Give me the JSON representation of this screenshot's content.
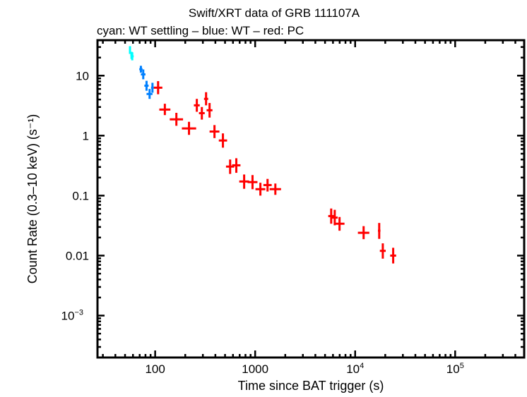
{
  "chart_data": {
    "type": "scatter",
    "title": "Swift/XRT data of GRB 111107A",
    "subtitle": "cyan: WT settling – blue: WT – red: PC",
    "xlabel": "Time since BAT trigger (s)",
    "ylabel": "Count Rate (0.3–10 keV) (s⁻¹)",
    "xscale": "log",
    "yscale": "log",
    "xlim": [
      26.5,
      490000
    ],
    "ylim": [
      0.0002,
      39
    ],
    "grid": false,
    "x_ticks": [
      {
        "value": 100,
        "base": "100",
        "exp": ""
      },
      {
        "value": 1000,
        "base": "1000",
        "exp": ""
      },
      {
        "value": 10000,
        "base": "10",
        "exp": "4"
      },
      {
        "value": 100000,
        "base": "10",
        "exp": "5"
      }
    ],
    "y_ticks": [
      {
        "value": 10,
        "base": "10",
        "exp": ""
      },
      {
        "value": 1,
        "base": "1",
        "exp": ""
      },
      {
        "value": 0.1,
        "base": "0.1",
        "exp": ""
      },
      {
        "value": 0.01,
        "base": "0.01",
        "exp": ""
      },
      {
        "value": 0.001,
        "base": "10",
        "exp": "−3"
      }
    ],
    "series": [
      {
        "mode": "WT settling",
        "color": "#00ffff",
        "points": [
          {
            "x": 56,
            "y": 27,
            "xlo": 55,
            "xhi": 57,
            "ylo": 23,
            "yhi": 31
          },
          {
            "x": 58,
            "y": 22,
            "xlo": 56.5,
            "xhi": 59.5,
            "ylo": 19,
            "yhi": 25
          },
          {
            "x": 59,
            "y": 21,
            "xlo": 57,
            "xhi": 61,
            "ylo": 18,
            "yhi": 24.5
          }
        ]
      },
      {
        "mode": "WT",
        "color": "#0080ff",
        "points": [
          {
            "x": 72,
            "y": 12.8,
            "xlo": 69.4,
            "xhi": 74.7,
            "ylo": 11.2,
            "yhi": 14.6
          },
          {
            "x": 76,
            "y": 10.5,
            "xlo": 72,
            "xhi": 80,
            "ylo": 8.7,
            "yhi": 12.7
          },
          {
            "x": 82,
            "y": 6.8,
            "xlo": 78,
            "xhi": 86,
            "ylo": 5.6,
            "yhi": 8.2
          },
          {
            "x": 88,
            "y": 4.95,
            "xlo": 82,
            "xhi": 94,
            "ylo": 4.1,
            "yhi": 6.0
          },
          {
            "x": 94,
            "y": 6.3,
            "xlo": 91,
            "xhi": 97,
            "ylo": 5.2,
            "yhi": 7.6
          }
        ]
      },
      {
        "mode": "PC",
        "color": "#ff0000",
        "points": [
          {
            "x": 107,
            "y": 6.3,
            "xlo": 97,
            "xhi": 118,
            "ylo": 4.9,
            "yhi": 8.1
          },
          {
            "x": 125,
            "y": 2.72,
            "xlo": 110,
            "xhi": 142,
            "ylo": 2.2,
            "yhi": 3.4
          },
          {
            "x": 163,
            "y": 1.87,
            "xlo": 140,
            "xhi": 190,
            "ylo": 1.46,
            "yhi": 2.4
          },
          {
            "x": 218,
            "y": 1.32,
            "xlo": 185,
            "xhi": 257,
            "ylo": 1.03,
            "yhi": 1.7
          },
          {
            "x": 261,
            "y": 3.2,
            "xlo": 244,
            "xhi": 279,
            "ylo": 2.5,
            "yhi": 4.1
          },
          {
            "x": 293,
            "y": 2.37,
            "xlo": 274,
            "xhi": 313,
            "ylo": 1.85,
            "yhi": 3.0
          },
          {
            "x": 323,
            "y": 4.1,
            "xlo": 308,
            "xhi": 339,
            "ylo": 3.2,
            "yhi": 5.3
          },
          {
            "x": 350,
            "y": 2.65,
            "xlo": 327,
            "xhi": 374,
            "ylo": 2.0,
            "yhi": 3.5
          },
          {
            "x": 392,
            "y": 1.17,
            "xlo": 350,
            "xhi": 439,
            "ylo": 0.91,
            "yhi": 1.5
          },
          {
            "x": 476,
            "y": 0.83,
            "xlo": 433,
            "xhi": 524,
            "ylo": 0.63,
            "yhi": 1.09
          },
          {
            "x": 562,
            "y": 0.305,
            "xlo": 511,
            "xhi": 618,
            "ylo": 0.23,
            "yhi": 0.4
          },
          {
            "x": 648,
            "y": 0.32,
            "xlo": 589,
            "xhi": 713,
            "ylo": 0.24,
            "yhi": 0.42
          },
          {
            "x": 776,
            "y": 0.172,
            "xlo": 693,
            "xhi": 869,
            "ylo": 0.13,
            "yhi": 0.225
          },
          {
            "x": 941,
            "y": 0.168,
            "xlo": 840,
            "xhi": 1054,
            "ylo": 0.128,
            "yhi": 0.22
          },
          {
            "x": 1128,
            "y": 0.128,
            "xlo": 1007,
            "xhi": 1263,
            "ylo": 0.1,
            "yhi": 0.164
          },
          {
            "x": 1330,
            "y": 0.15,
            "xlo": 1209,
            "xhi": 1463,
            "ylo": 0.117,
            "yhi": 0.19
          },
          {
            "x": 1592,
            "y": 0.128,
            "xlo": 1396,
            "xhi": 1815,
            "ylo": 0.103,
            "yhi": 0.159
          },
          {
            "x": 5760,
            "y": 0.0456,
            "xlo": 5380,
            "xhi": 6160,
            "ylo": 0.034,
            "yhi": 0.061
          },
          {
            "x": 6250,
            "y": 0.043,
            "xlo": 5840,
            "xhi": 6690,
            "ylo": 0.032,
            "yhi": 0.058
          },
          {
            "x": 6980,
            "y": 0.034,
            "xlo": 6230,
            "xhi": 7820,
            "ylo": 0.026,
            "yhi": 0.044
          },
          {
            "x": 12150,
            "y": 0.024,
            "xlo": 10650,
            "xhi": 13850,
            "ylo": 0.0188,
            "yhi": 0.031
          },
          {
            "x": 17400,
            "y": 0.026,
            "xlo": 16900,
            "xhi": 17900,
            "ylo": 0.019,
            "yhi": 0.035
          },
          {
            "x": 18900,
            "y": 0.012,
            "xlo": 17660,
            "xhi": 20220,
            "ylo": 0.0089,
            "yhi": 0.016
          },
          {
            "x": 24000,
            "y": 0.01,
            "xlo": 22400,
            "xhi": 25700,
            "ylo": 0.0074,
            "yhi": 0.0135
          }
        ]
      }
    ]
  }
}
